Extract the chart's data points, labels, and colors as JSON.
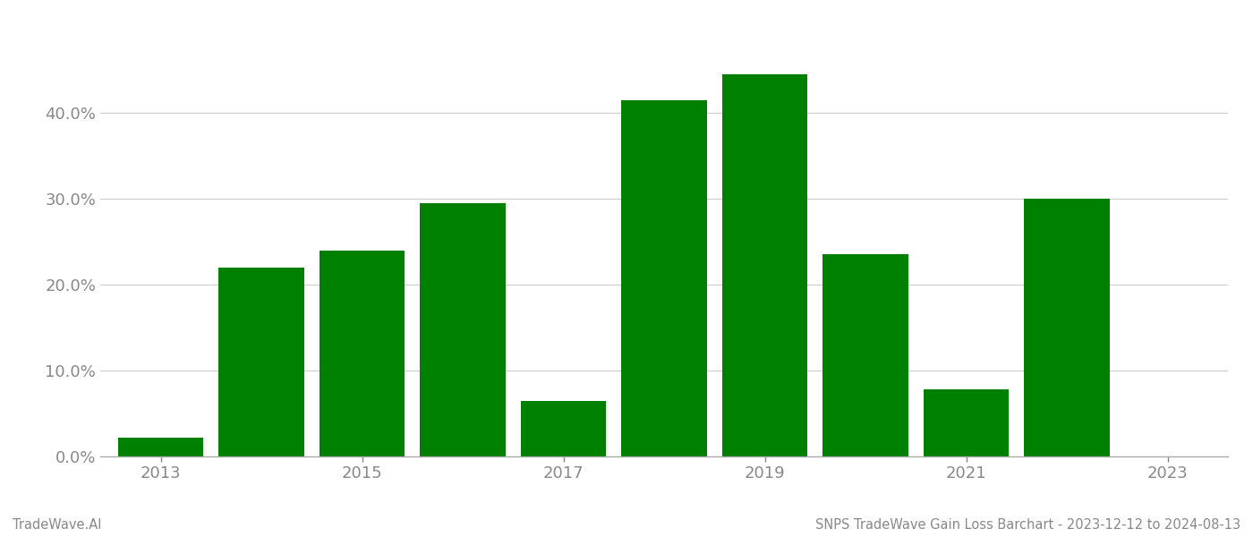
{
  "years": [
    2013,
    2014,
    2015,
    2016,
    2017,
    2018,
    2019,
    2020,
    2021,
    2022
  ],
  "values": [
    0.022,
    0.22,
    0.24,
    0.295,
    0.065,
    0.415,
    0.445,
    0.235,
    0.078,
    0.3
  ],
  "bar_color": "#008000",
  "background_color": "#ffffff",
  "grid_color": "#cccccc",
  "tick_color": "#888888",
  "axis_color": "#aaaaaa",
  "yticks": [
    0.0,
    0.1,
    0.2,
    0.3,
    0.4
  ],
  "xticks": [
    2013,
    2015,
    2017,
    2019,
    2021,
    2023
  ],
  "ylim": [
    0.0,
    0.5
  ],
  "xlim": [
    2012.4,
    2023.6
  ],
  "footer_left": "TradeWave.AI",
  "footer_right": "SNPS TradeWave Gain Loss Barchart - 2023-12-12 to 2024-08-13",
  "footer_fontsize": 10.5,
  "tick_fontsize": 13,
  "bar_width": 0.85
}
